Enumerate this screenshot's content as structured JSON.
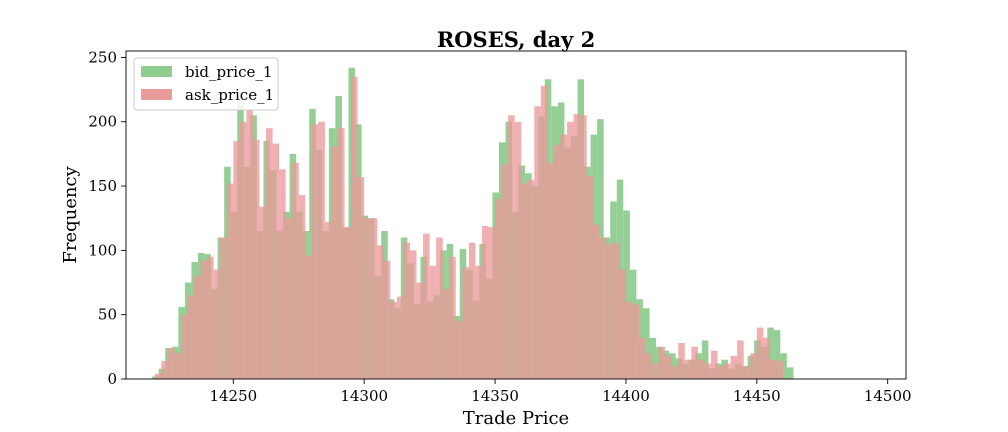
{
  "chart_data": {
    "type": "bar",
    "title": "ROSES, day 2",
    "xlabel": "Trade Price",
    "ylabel": "Frequency",
    "xlim": [
      14209,
      14507
    ],
    "ylim": [
      0,
      255
    ],
    "xticks": [
      14250,
      14300,
      14350,
      14400,
      14450,
      14500
    ],
    "yticks": [
      0,
      50,
      100,
      150,
      200,
      250
    ],
    "bin_width": 2.5,
    "grid": false,
    "legend_position": "top-left",
    "series": [
      {
        "name": "bid_price_1",
        "color": "#8fcc8f",
        "x_start": 14219,
        "values": [
          2,
          8,
          24,
          25,
          56,
          75,
          91,
          98,
          97,
          70,
          110,
          165,
          130,
          220,
          165,
          205,
          115,
          185,
          162,
          115,
          130,
          175,
          130,
          115,
          210,
          178,
          115,
          195,
          220,
          118,
          242,
          198,
          127,
          125,
          80,
          115,
          62,
          55,
          110,
          90,
          58,
          95,
          60,
          65,
          100,
          105,
          49,
          101,
          85,
          61,
          105,
          78,
          145,
          184,
          200,
          130,
          166,
          160,
          150,
          204,
          233,
          212,
          215,
          180,
          189,
          233,
          165,
          190,
          202,
          110,
          138,
          155,
          131,
          85,
          62,
          55,
          32,
          25,
          22,
          20,
          16,
          12,
          15,
          20,
          30,
          8,
          12,
          15,
          8,
          12,
          10,
          18,
          30,
          25,
          40,
          38,
          20,
          9
        ]
      },
      {
        "name": "ask_price_1",
        "color": "#e99a9a",
        "x_start": 14220,
        "values": [
          4,
          14,
          24,
          20,
          50,
          65,
          80,
          92,
          95,
          85,
          110,
          152,
          185,
          200,
          209,
          186,
          134,
          195,
          183,
          163,
          125,
          168,
          143,
          96,
          198,
          200,
          122,
          181,
          195,
          118,
          235,
          157,
          125,
          125,
          104,
          92,
          60,
          64,
          106,
          100,
          75,
          113,
          88,
          110,
          70,
          95,
          45,
          87,
          106,
          88,
          119,
          118,
          140,
          167,
          205,
          200,
          152,
          155,
          212,
          228,
          168,
          182,
          190,
          200,
          206,
          205,
          158,
          120,
          110,
          105,
          106,
          85,
          60,
          58,
          32,
          20,
          12,
          25,
          18,
          10,
          28,
          15,
          25,
          15,
          12,
          22,
          10,
          12,
          18,
          30,
          10,
          20,
          40,
          32,
          15,
          14
        ]
      }
    ]
  }
}
